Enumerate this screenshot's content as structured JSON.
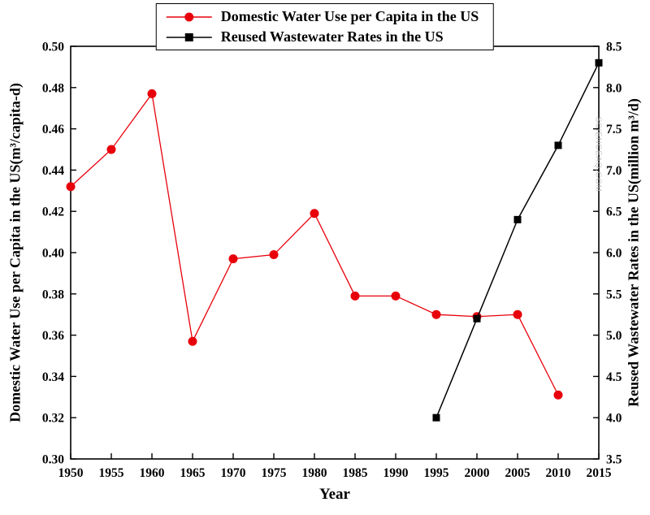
{
  "watermark": "SCIENCEAQ.COM",
  "chart_data": {
    "type": "line",
    "title": "",
    "xlabel": "Year",
    "left_axis_label": "Domestic Water Use per Capita in the US(m³/capita-d)",
    "right_axis_label": "Reused Wastewater Rates in the US(million m³/d)",
    "xlim": [
      1950,
      2015
    ],
    "x_ticks": [
      1950,
      1955,
      1960,
      1965,
      1970,
      1975,
      1980,
      1985,
      1990,
      1995,
      2000,
      2005,
      2010,
      2015
    ],
    "left_ylim": [
      0.3,
      0.5
    ],
    "left_yticks": [
      "0.30",
      "0.32",
      "0.34",
      "0.36",
      "0.38",
      "0.40",
      "0.42",
      "0.44",
      "0.46",
      "0.48",
      "0.50"
    ],
    "right_ylim": [
      3.5,
      8.5
    ],
    "right_yticks": [
      "3.5",
      "4.0",
      "4.5",
      "5.0",
      "5.5",
      "6.0",
      "6.5",
      "7.0",
      "7.5",
      "8.0",
      "8.5"
    ],
    "grid": false,
    "legend_position": "top-center",
    "series": [
      {
        "name": "Domestic Water Use per Capita in the US",
        "axis": "left",
        "color": "#e8000b",
        "marker": "circle",
        "x": [
          1950,
          1955,
          1960,
          1965,
          1970,
          1975,
          1980,
          1985,
          1990,
          1995,
          2000,
          2005,
          2010
        ],
        "values": [
          0.432,
          0.45,
          0.477,
          0.357,
          0.397,
          0.399,
          0.419,
          0.379,
          0.379,
          0.37,
          0.369,
          0.37,
          0.331
        ]
      },
      {
        "name": "Reused Wastewater Rates in the US",
        "axis": "right",
        "color": "#000000",
        "marker": "square",
        "x": [
          1995,
          2000,
          2005,
          2010,
          2015
        ],
        "values": [
          4.0,
          5.2,
          6.4,
          7.3,
          8.3
        ]
      }
    ]
  }
}
